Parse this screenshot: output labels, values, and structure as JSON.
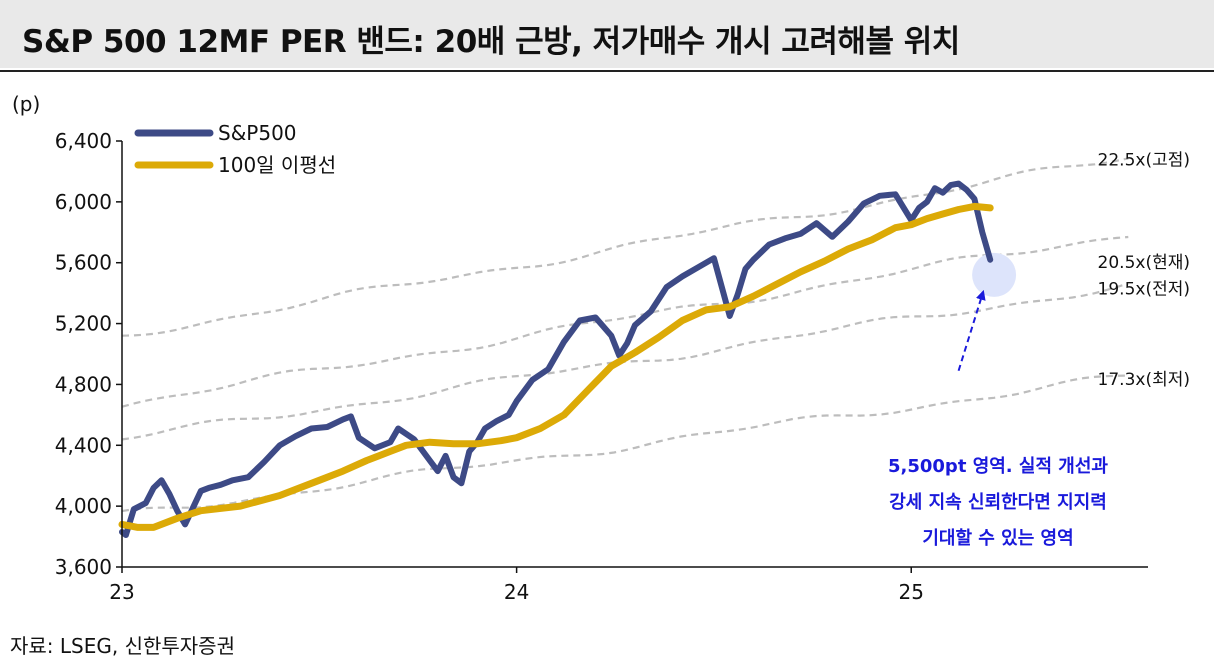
{
  "title": "S&P 500 12MF PER 밴드: 20배 근방, 저가매수 개시 고려해볼 위치",
  "source": "자료: LSEG, 신한투자증권",
  "colors": {
    "sp500": "#3d4a86",
    "ma100": "#dcaa07",
    "band": "#bdbdbd",
    "highlight": "#dde4fb",
    "annotation": "#1a1adb"
  },
  "chart_data": {
    "type": "line",
    "yunit": "(p)",
    "ylim": [
      3600,
      6400
    ],
    "yticks": [
      {
        "value": 3600,
        "label": "3,600"
      },
      {
        "value": 4000,
        "label": "4,000"
      },
      {
        "value": 4400,
        "label": "4,400"
      },
      {
        "value": 4800,
        "label": "4,800"
      },
      {
        "value": 5200,
        "label": "5,200"
      },
      {
        "value": 5600,
        "label": "5,600"
      },
      {
        "value": 6000,
        "label": "6,000"
      },
      {
        "value": 6400,
        "label": "6,400"
      }
    ],
    "xlim": [
      2023.0,
      2025.6
    ],
    "xticks": [
      {
        "value": 2023.0,
        "label": "23"
      },
      {
        "value": 2024.0,
        "label": "24"
      },
      {
        "value": 2025.0,
        "label": "25"
      }
    ],
    "legend": [
      {
        "name": "S&P500",
        "series": "sp500"
      },
      {
        "name": "100일 이평선",
        "series": "ma100"
      }
    ],
    "series": [
      {
        "id": "sp500",
        "name": "S&P500",
        "x": [
          2023.0,
          2023.01,
          2023.03,
          2023.06,
          2023.08,
          2023.1,
          2023.12,
          2023.14,
          2023.16,
          2023.18,
          2023.2,
          2023.22,
          2023.25,
          2023.28,
          2023.32,
          2023.36,
          2023.4,
          2023.44,
          2023.48,
          2023.52,
          2023.56,
          2023.58,
          2023.6,
          2023.64,
          2023.68,
          2023.7,
          2023.74,
          2023.78,
          2023.8,
          2023.82,
          2023.84,
          2023.86,
          2023.88,
          2023.9,
          2023.92,
          2023.95,
          2023.98,
          2024.0,
          2024.04,
          2024.08,
          2024.12,
          2024.16,
          2024.2,
          2024.24,
          2024.26,
          2024.28,
          2024.3,
          2024.34,
          2024.38,
          2024.42,
          2024.46,
          2024.5,
          2024.52,
          2024.54,
          2024.56,
          2024.58,
          2024.6,
          2024.64,
          2024.68,
          2024.72,
          2024.76,
          2024.8,
          2024.84,
          2024.88,
          2024.92,
          2024.96,
          2025.0,
          2025.02,
          2025.04,
          2025.06,
          2025.08,
          2025.1,
          2025.12,
          2025.14,
          2025.16,
          2025.18,
          2025.2
        ],
        "values": [
          3830,
          3810,
          3980,
          4020,
          4120,
          4170,
          4080,
          3970,
          3880,
          3990,
          4100,
          4120,
          4140,
          4170,
          4190,
          4290,
          4400,
          4460,
          4510,
          4520,
          4570,
          4590,
          4450,
          4380,
          4420,
          4510,
          4440,
          4300,
          4230,
          4330,
          4190,
          4150,
          4360,
          4420,
          4510,
          4560,
          4600,
          4690,
          4830,
          4900,
          5080,
          5220,
          5240,
          5120,
          4990,
          5070,
          5190,
          5280,
          5440,
          5510,
          5570,
          5630,
          5440,
          5250,
          5390,
          5560,
          5620,
          5720,
          5760,
          5790,
          5860,
          5770,
          5870,
          5990,
          6040,
          6050,
          5880,
          5960,
          6000,
          6090,
          6060,
          6110,
          6120,
          6080,
          6020,
          5800,
          5620
        ]
      },
      {
        "id": "ma100",
        "name": "100일 이평선",
        "x": [
          2023.0,
          2023.04,
          2023.08,
          2023.14,
          2023.2,
          2023.3,
          2023.4,
          2023.5,
          2023.56,
          2023.62,
          2023.68,
          2023.72,
          2023.78,
          2023.84,
          2023.9,
          2023.96,
          2024.0,
          2024.06,
          2024.12,
          2024.18,
          2024.24,
          2024.3,
          2024.36,
          2024.42,
          2024.48,
          2024.54,
          2024.6,
          2024.66,
          2024.72,
          2024.78,
          2024.84,
          2024.9,
          2024.96,
          2025.0,
          2025.04,
          2025.08,
          2025.12,
          2025.16,
          2025.2
        ],
        "values": [
          3880,
          3860,
          3860,
          3920,
          3970,
          4000,
          4070,
          4170,
          4230,
          4300,
          4360,
          4400,
          4420,
          4410,
          4410,
          4430,
          4450,
          4510,
          4600,
          4760,
          4920,
          5010,
          5110,
          5220,
          5290,
          5310,
          5380,
          5460,
          5540,
          5610,
          5690,
          5750,
          5830,
          5850,
          5890,
          5920,
          5950,
          5970,
          5960
        ]
      }
    ],
    "bands": [
      {
        "label": "22.5x(고점)",
        "start": 5120,
        "end": 6290
      },
      {
        "label": "20.5x(현재)",
        "start": 4670,
        "end": 5790
      },
      {
        "label": "19.5x(전저)",
        "start": 4440,
        "end": 5450
      },
      {
        "label": "17.3x(최저)",
        "start": 3940,
        "end": 4850
      }
    ],
    "highlight": {
      "x": 2025.21,
      "y": 5520
    },
    "annotation": {
      "lines": [
        "5,500pt 영역. 실적 개선과",
        "강세 지속 신뢰한다면 지지력",
        "기대할 수 있는 영역"
      ],
      "arrow_from": {
        "x": 2025.12,
        "y": 4890
      },
      "arrow_to": {
        "x": 2025.18,
        "y": 5390
      }
    }
  }
}
